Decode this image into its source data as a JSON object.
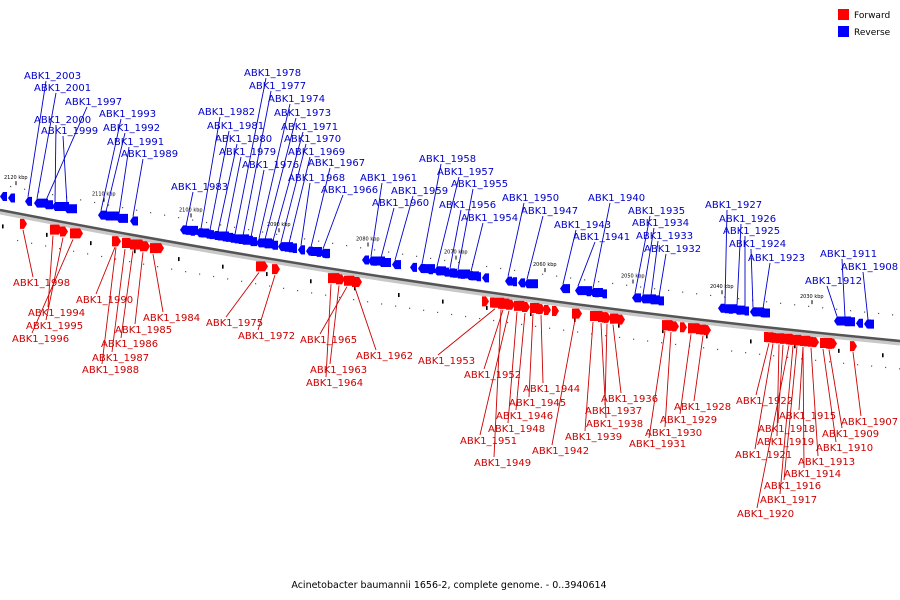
{
  "legend": {
    "forward": {
      "label": "Forward",
      "color": "#ff0000"
    },
    "reverse": {
      "label": "Reverse",
      "color": "#0000ff"
    }
  },
  "caption": "Acinetobacter baumannii 1656-2, complete genome. - 0..3940614",
  "ticks": [
    "2120 kbp",
    "2110 kbp",
    "2100 kbp",
    "2090 kbp",
    "2080 kbp",
    "2070 kbp",
    "2060 kbp",
    "2050 kbp",
    "2040 kbp",
    "2030 kbp"
  ],
  "reverse_genes": [
    "ABK1_2003",
    "ABK1_2001",
    "ABK1_1997",
    "ABK1_2000",
    "ABK1_1999",
    "ABK1_1993",
    "ABK1_1992",
    "ABK1_1991",
    "ABK1_1989",
    "ABK1_1983",
    "ABK1_1982",
    "ABK1_1981",
    "ABK1_1980",
    "ABK1_1979",
    "ABK1_1978",
    "ABK1_1977",
    "ABK1_1976",
    "ABK1_1974",
    "ABK1_1973",
    "ABK1_1971",
    "ABK1_1970",
    "ABK1_1969",
    "ABK1_1968",
    "ABK1_1967",
    "ABK1_1966",
    "ABK1_1961",
    "ABK1_1960",
    "ABK1_1959",
    "ABK1_1958",
    "ABK1_1957",
    "ABK1_1956",
    "ABK1_1955",
    "ABK1_1954",
    "ABK1_1950",
    "ABK1_1947",
    "ABK1_1943",
    "ABK1_1941",
    "ABK1_1940",
    "ABK1_1935",
    "ABK1_1934",
    "ABK1_1933",
    "ABK1_1932",
    "ABK1_1927",
    "ABK1_1926",
    "ABK1_1925",
    "ABK1_1924",
    "ABK1_1923",
    "ABK1_1912",
    "ABK1_1911",
    "ABK1_1908"
  ],
  "forward_genes": [
    "ABK1_1998",
    "ABK1_1994",
    "ABK1_1995",
    "ABK1_1996",
    "ABK1_1990",
    "ABK1_1984",
    "ABK1_1985",
    "ABK1_1986",
    "ABK1_1987",
    "ABK1_1988",
    "ABK1_1975",
    "ABK1_1972",
    "ABK1_1965",
    "ABK1_1963",
    "ABK1_1964",
    "ABK1_1962",
    "ABK1_1953",
    "ABK1_1952",
    "ABK1_1944",
    "ABK1_1945",
    "ABK1_1946",
    "ABK1_1948",
    "ABK1_1951",
    "ABK1_1949",
    "ABK1_1942",
    "ABK1_1939",
    "ABK1_1936",
    "ABK1_1937",
    "ABK1_1938",
    "ABK1_1930",
    "ABK1_1931",
    "ABK1_1928",
    "ABK1_1929",
    "ABK1_1922",
    "ABK1_1918",
    "ABK1_1919",
    "ABK1_1921",
    "ABK1_1915",
    "ABK1_1913",
    "ABK1_1914",
    "ABK1_1916",
    "ABK1_1917",
    "ABK1_1920",
    "ABK1_1910",
    "ABK1_1909",
    "ABK1_1907"
  ]
}
